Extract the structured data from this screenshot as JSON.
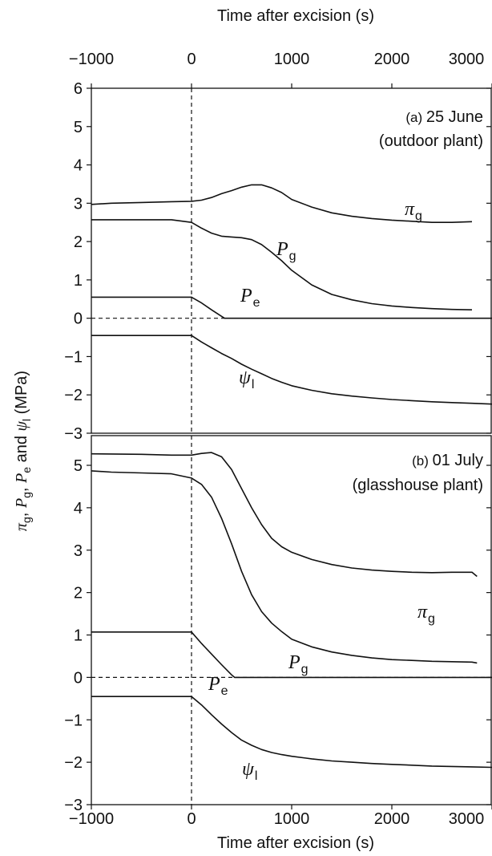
{
  "chart_data": [
    {
      "type": "line",
      "panel_label": "(a)",
      "panel_date": "25 June",
      "panel_subtitle": "(outdoor plant)",
      "xlabel": "Time after excision (s)",
      "ylabel": {
        "a": "π",
        "b": "g",
        "c": ", ",
        "d": "P",
        "e": "g",
        "f": ", ",
        "g": "P",
        "h": "e",
        "i": " and ",
        "j": "ψ",
        "k": "l",
        "l": " (MPa)"
      },
      "xlim": [
        -1000,
        3000
      ],
      "ylim": [
        -3,
        6
      ],
      "x_ticks": [
        "−1000",
        "0",
        "1000",
        "2000",
        "3000"
      ],
      "x_tick_values": [
        -1000,
        0,
        1000,
        2000,
        3000
      ],
      "y_ticks": [
        "−3",
        "−2",
        "−1",
        "0",
        "1",
        "2",
        "3",
        "4",
        "5",
        "6"
      ],
      "y_tick_values": [
        -3,
        -2,
        -1,
        0,
        1,
        2,
        3,
        4,
        5,
        6
      ],
      "reference_lines": {
        "x": 0,
        "y": 0
      },
      "series": [
        {
          "name": "π_g",
          "label_main": "π",
          "label_sub": "g",
          "x": [
            -1000,
            -800,
            -500,
            -200,
            0,
            100,
            200,
            300,
            400,
            500,
            600,
            700,
            800,
            900,
            1000,
            1200,
            1400,
            1600,
            1800,
            2000,
            2200,
            2400,
            2600,
            2800
          ],
          "y": [
            2.97,
            3.0,
            3.02,
            3.04,
            3.05,
            3.08,
            3.15,
            3.25,
            3.33,
            3.42,
            3.48,
            3.48,
            3.4,
            3.28,
            3.1,
            2.9,
            2.75,
            2.66,
            2.6,
            2.56,
            2.53,
            2.5,
            2.5,
            2.52
          ]
        },
        {
          "name": "P_g",
          "label_main": "P",
          "label_sub": "g",
          "x": [
            -1000,
            -800,
            -500,
            -200,
            0,
            100,
            200,
            300,
            400,
            500,
            600,
            700,
            800,
            900,
            1000,
            1200,
            1400,
            1600,
            1800,
            2000,
            2200,
            2400,
            2600,
            2800
          ],
          "y": [
            2.57,
            2.57,
            2.57,
            2.57,
            2.5,
            2.35,
            2.22,
            2.14,
            2.12,
            2.1,
            2.05,
            1.92,
            1.72,
            1.5,
            1.25,
            0.87,
            0.62,
            0.48,
            0.38,
            0.32,
            0.28,
            0.25,
            0.23,
            0.22
          ]
        },
        {
          "name": "P_e",
          "label_main": "P",
          "label_sub": "e",
          "x": [
            -1000,
            -500,
            0,
            100,
            200,
            300,
            330,
            500,
            1000,
            2000,
            3000
          ],
          "y": [
            0.55,
            0.55,
            0.55,
            0.4,
            0.22,
            0.05,
            0.0,
            0.0,
            0.0,
            0.0,
            0.0
          ]
        },
        {
          "name": "ψ_l",
          "label_main": "ψ",
          "label_sub": "l",
          "x": [
            -1000,
            -500,
            0,
            100,
            200,
            300,
            400,
            500,
            600,
            700,
            800,
            900,
            1000,
            1200,
            1400,
            1600,
            1800,
            2000,
            2200,
            2400,
            2600,
            2800,
            3000
          ],
          "y": [
            -0.45,
            -0.45,
            -0.45,
            -0.62,
            -0.77,
            -0.92,
            -1.05,
            -1.2,
            -1.33,
            -1.45,
            -1.57,
            -1.67,
            -1.76,
            -1.88,
            -1.97,
            -2.03,
            -2.08,
            -2.12,
            -2.15,
            -2.18,
            -2.2,
            -2.22,
            -2.24
          ]
        }
      ]
    },
    {
      "type": "line",
      "panel_label": "(b)",
      "panel_date": "01 July",
      "panel_subtitle": "(glasshouse plant)",
      "xlabel": "Time after excision (s)",
      "xlim": [
        -1000,
        3000
      ],
      "ylim": [
        -3,
        5.7
      ],
      "x_ticks": [
        "−1000",
        "0",
        "1000",
        "2000",
        "3000"
      ],
      "x_tick_values": [
        -1000,
        0,
        1000,
        2000,
        3000
      ],
      "y_ticks": [
        "−3",
        "−2",
        "−1",
        "0",
        "1",
        "2",
        "3",
        "4",
        "5"
      ],
      "y_tick_values": [
        -3,
        -2,
        -1,
        0,
        1,
        2,
        3,
        4,
        5
      ],
      "reference_lines": {
        "x": 0,
        "y": 0
      },
      "series": [
        {
          "name": "π_g",
          "label_main": "π",
          "label_sub": "g",
          "x": [
            -1000,
            -500,
            -200,
            0,
            100,
            200,
            300,
            400,
            500,
            600,
            700,
            800,
            900,
            1000,
            1200,
            1400,
            1600,
            1800,
            2000,
            2200,
            2400,
            2600,
            2800,
            2850
          ],
          "y": [
            5.27,
            5.26,
            5.24,
            5.24,
            5.28,
            5.3,
            5.2,
            4.9,
            4.45,
            4.0,
            3.6,
            3.28,
            3.08,
            2.95,
            2.78,
            2.66,
            2.58,
            2.53,
            2.5,
            2.48,
            2.47,
            2.48,
            2.48,
            2.38
          ]
        },
        {
          "name": "P_g",
          "label_main": "P",
          "label_sub": "g",
          "x": [
            -1000,
            -800,
            -500,
            -200,
            0,
            100,
            200,
            300,
            400,
            500,
            600,
            700,
            800,
            900,
            1000,
            1200,
            1400,
            1600,
            1800,
            2000,
            2200,
            2400,
            2600,
            2800,
            2850
          ],
          "y": [
            4.87,
            4.84,
            4.82,
            4.8,
            4.7,
            4.55,
            4.25,
            3.75,
            3.15,
            2.5,
            1.95,
            1.55,
            1.28,
            1.08,
            0.9,
            0.72,
            0.6,
            0.52,
            0.46,
            0.42,
            0.4,
            0.38,
            0.37,
            0.36,
            0.34
          ]
        },
        {
          "name": "P_e",
          "label_main": "P",
          "label_sub": "e",
          "x": [
            -1000,
            -500,
            0,
            100,
            200,
            300,
            400,
            430,
            600,
            1000,
            2000,
            3000
          ],
          "y": [
            1.07,
            1.07,
            1.07,
            0.8,
            0.55,
            0.3,
            0.06,
            0.0,
            0.0,
            0.0,
            0.0,
            0.0
          ]
        },
        {
          "name": "ψ_l",
          "label_main": "ψ",
          "label_sub": "l",
          "x": [
            -1000,
            -500,
            0,
            100,
            200,
            300,
            400,
            500,
            600,
            700,
            800,
            900,
            1000,
            1200,
            1400,
            1600,
            1800,
            2000,
            2200,
            2400,
            2600,
            2800,
            3000
          ],
          "y": [
            -0.45,
            -0.45,
            -0.45,
            -0.65,
            -0.88,
            -1.1,
            -1.3,
            -1.48,
            -1.6,
            -1.7,
            -1.77,
            -1.82,
            -1.86,
            -1.92,
            -1.97,
            -2.0,
            -2.03,
            -2.05,
            -2.07,
            -2.09,
            -2.1,
            -2.11,
            -2.12
          ]
        }
      ]
    }
  ]
}
